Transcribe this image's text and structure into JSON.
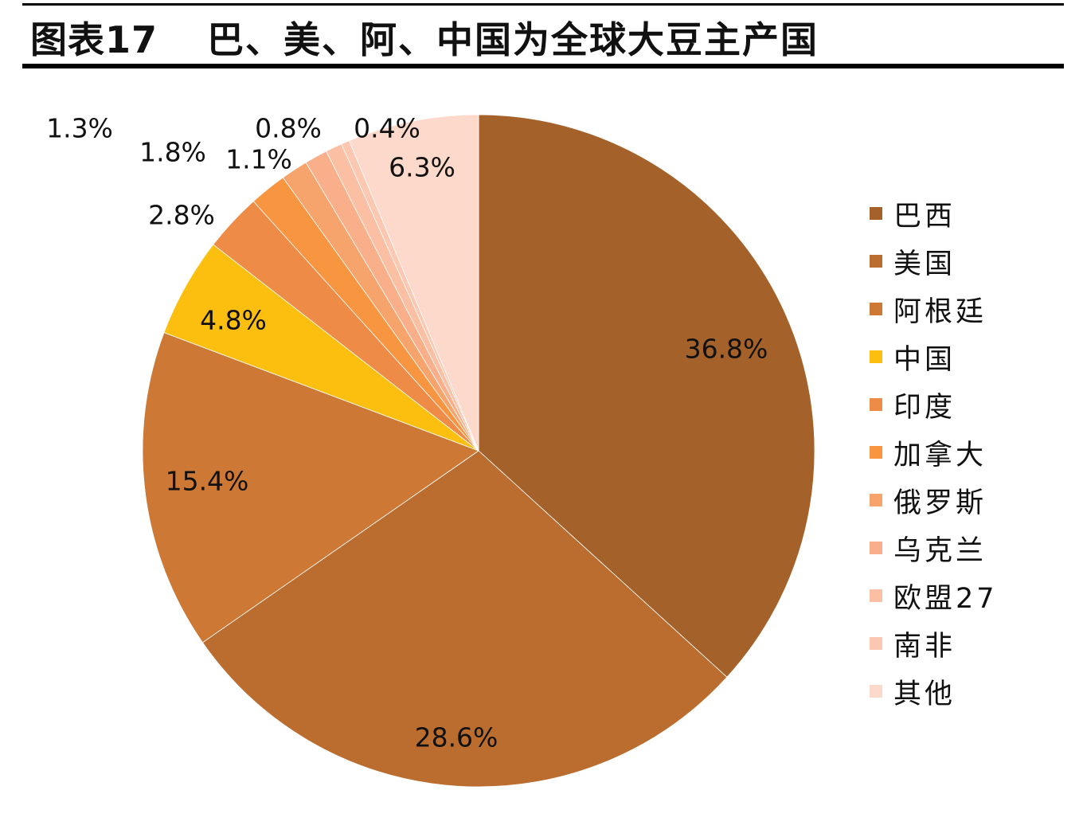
{
  "header": {
    "figure_number": "图表17",
    "title": "巴、美、阿、中国为全球大豆主产国"
  },
  "chart_data": {
    "type": "pie",
    "title": "巴、美、阿、中国为全球大豆主产国",
    "start_angle_deg": 0,
    "direction": "clockwise",
    "legend_position": "right",
    "slices": [
      {
        "name": "巴西",
        "value": 36.8,
        "label": "36.8%",
        "color": "#A5612A"
      },
      {
        "name": "美国",
        "value": 28.6,
        "label": "28.6%",
        "color": "#BA6D2F"
      },
      {
        "name": "阿根廷",
        "value": 15.4,
        "label": "15.4%",
        "color": "#CD7935"
      },
      {
        "name": "中国",
        "value": 4.8,
        "label": "4.8%",
        "color": "#FDBF0F"
      },
      {
        "name": "印度",
        "value": 2.8,
        "label": "2.8%",
        "color": "#ED8B47"
      },
      {
        "name": "加拿大",
        "value": 1.8,
        "label": "1.8%",
        "color": "#F89541"
      },
      {
        "name": "俄罗斯",
        "value": 1.3,
        "label": "1.3%",
        "color": "#F7A46C"
      },
      {
        "name": "乌克兰",
        "value": 1.1,
        "label": "1.1%",
        "color": "#F9B08A"
      },
      {
        "name": "欧盟27",
        "value": 0.8,
        "label": "0.8%",
        "color": "#FBBFA3"
      },
      {
        "name": "南非",
        "value": 0.4,
        "label": "0.4%",
        "color": "#FCC8B2"
      },
      {
        "name": "其他",
        "value": 6.3,
        "label": "6.3%",
        "color": "#FDD9CB"
      }
    ]
  }
}
